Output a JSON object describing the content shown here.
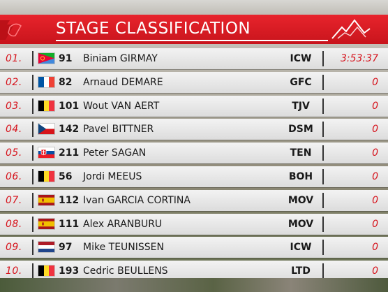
{
  "header": {
    "title": "STAGE CLASSIFICATION"
  },
  "rows": [
    {
      "rank": "01.",
      "flag": "eritrea",
      "bib": "91",
      "rider": "Biniam GIRMAY",
      "team": "ICW",
      "time": "3:53:37"
    },
    {
      "rank": "02.",
      "flag": "france",
      "bib": "82",
      "rider": "Arnaud DEMARE",
      "team": "GFC",
      "time": "0"
    },
    {
      "rank": "03.",
      "flag": "belgium",
      "bib": "101",
      "rider": "Wout VAN AERT",
      "team": "TJV",
      "time": "0"
    },
    {
      "rank": "04.",
      "flag": "czechia",
      "bib": "142",
      "rider": "Pavel BITTNER",
      "team": "DSM",
      "time": "0"
    },
    {
      "rank": "05.",
      "flag": "slovakia",
      "bib": "211",
      "rider": "Peter SAGAN",
      "team": "TEN",
      "time": "0"
    },
    {
      "rank": "06.",
      "flag": "belgium",
      "bib": "56",
      "rider": "Jordi MEEUS",
      "team": "BOH",
      "time": "0"
    },
    {
      "rank": "07.",
      "flag": "spain",
      "bib": "112",
      "rider": "Ivan GARCIA CORTINA",
      "team": "MOV",
      "time": "0"
    },
    {
      "rank": "08.",
      "flag": "spain",
      "bib": "111",
      "rider": "Alex ARANBURU",
      "team": "MOV",
      "time": "0"
    },
    {
      "rank": "09.",
      "flag": "netherlands",
      "bib": "97",
      "rider": "Mike TEUNISSEN",
      "team": "ICW",
      "time": "0"
    },
    {
      "rank": "10.",
      "flag": "belgium",
      "bib": "193",
      "rider": "Cedric BEULLENS",
      "team": "LTD",
      "time": "0"
    }
  ],
  "colors": {
    "accent": "#d6121b",
    "header": "#e8242c",
    "row": "#efefef"
  }
}
